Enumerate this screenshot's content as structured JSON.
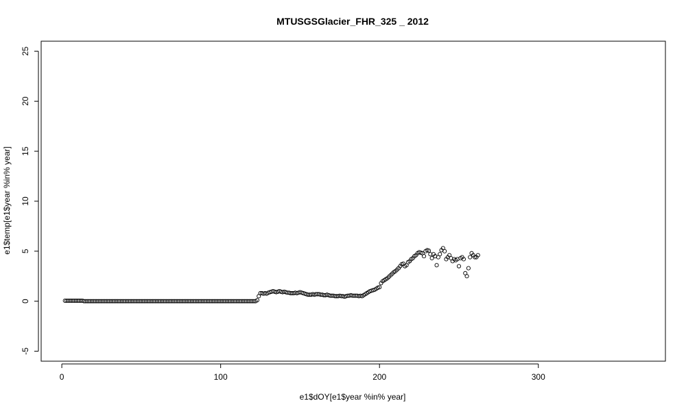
{
  "chart_data": {
    "type": "scatter",
    "title": "MTUSGSGlacier_FHR_325 _ 2012",
    "xlabel": "e1$dOY[e1$year %in% year]",
    "ylabel": "e1$temp[e1$year %in% year]",
    "xlim": [
      -13,
      380
    ],
    "ylim": [
      -6,
      26
    ],
    "xticks": [
      0,
      100,
      200,
      300
    ],
    "yticks": [
      -5,
      0,
      5,
      10,
      15,
      20,
      25
    ],
    "grid": false,
    "legend": "none",
    "marker": "open-circle",
    "series": [
      {
        "points": [
          [
            2,
            0.05
          ],
          [
            3,
            0.05
          ],
          [
            4,
            0.05
          ],
          [
            5,
            0.05
          ],
          [
            6,
            0.05
          ],
          [
            7,
            0.05
          ],
          [
            8,
            0.05
          ],
          [
            9,
            0.05
          ],
          [
            10,
            0.05
          ],
          [
            11,
            0.05
          ],
          [
            12,
            0.05
          ],
          [
            13,
            0.05
          ],
          [
            14,
            0.0
          ],
          [
            15,
            0.0
          ],
          [
            16,
            0.0
          ],
          [
            17,
            0.0
          ],
          [
            18,
            0.0
          ],
          [
            19,
            0.0
          ],
          [
            20,
            0.0
          ],
          [
            21,
            0.0
          ],
          [
            22,
            0.0
          ],
          [
            23,
            0.0
          ],
          [
            24,
            0.0
          ],
          [
            25,
            0.0
          ],
          [
            26,
            0.0
          ],
          [
            27,
            0.0
          ],
          [
            28,
            0.0
          ],
          [
            29,
            0.0
          ],
          [
            30,
            0.0
          ],
          [
            31,
            0.0
          ],
          [
            32,
            0.0
          ],
          [
            33,
            0.0
          ],
          [
            34,
            0.0
          ],
          [
            35,
            0.0
          ],
          [
            36,
            0.0
          ],
          [
            37,
            0.0
          ],
          [
            38,
            0.0
          ],
          [
            39,
            0.0
          ],
          [
            40,
            0.0
          ],
          [
            41,
            0.0
          ],
          [
            42,
            0.0
          ],
          [
            43,
            0.0
          ],
          [
            44,
            0.0
          ],
          [
            45,
            0.0
          ],
          [
            46,
            0.0
          ],
          [
            47,
            0.0
          ],
          [
            48,
            0.0
          ],
          [
            49,
            0.0
          ],
          [
            50,
            0.0
          ],
          [
            51,
            0.0
          ],
          [
            52,
            0.0
          ],
          [
            53,
            0.0
          ],
          [
            54,
            0.0
          ],
          [
            55,
            0.0
          ],
          [
            56,
            0.0
          ],
          [
            57,
            0.0
          ],
          [
            58,
            0.0
          ],
          [
            59,
            0.0
          ],
          [
            60,
            0.0
          ],
          [
            61,
            0.0
          ],
          [
            62,
            0.0
          ],
          [
            63,
            0.0
          ],
          [
            64,
            0.0
          ],
          [
            65,
            0.0
          ],
          [
            66,
            0.0
          ],
          [
            67,
            0.0
          ],
          [
            68,
            0.0
          ],
          [
            69,
            0.0
          ],
          [
            70,
            0.0
          ],
          [
            71,
            0.0
          ],
          [
            72,
            0.0
          ],
          [
            73,
            0.0
          ],
          [
            74,
            0.0
          ],
          [
            75,
            0.0
          ],
          [
            76,
            0.0
          ],
          [
            77,
            0.0
          ],
          [
            78,
            0.0
          ],
          [
            79,
            0.0
          ],
          [
            80,
            0.0
          ],
          [
            81,
            0.0
          ],
          [
            82,
            0.0
          ],
          [
            83,
            0.0
          ],
          [
            84,
            0.0
          ],
          [
            85,
            0.0
          ],
          [
            86,
            0.0
          ],
          [
            87,
            0.0
          ],
          [
            88,
            0.0
          ],
          [
            89,
            0.0
          ],
          [
            90,
            0.0
          ],
          [
            91,
            0.0
          ],
          [
            92,
            0.0
          ],
          [
            93,
            0.0
          ],
          [
            94,
            0.0
          ],
          [
            95,
            0.0
          ],
          [
            96,
            0.0
          ],
          [
            97,
            0.0
          ],
          [
            98,
            0.0
          ],
          [
            99,
            0.0
          ],
          [
            100,
            0.0
          ],
          [
            101,
            0.0
          ],
          [
            102,
            0.0
          ],
          [
            103,
            0.0
          ],
          [
            104,
            0.0
          ],
          [
            105,
            0.0
          ],
          [
            106,
            0.0
          ],
          [
            107,
            0.0
          ],
          [
            108,
            0.0
          ],
          [
            109,
            0.0
          ],
          [
            110,
            0.0
          ],
          [
            111,
            0.0
          ],
          [
            112,
            0.0
          ],
          [
            113,
            0.0
          ],
          [
            114,
            0.0
          ],
          [
            115,
            0.0
          ],
          [
            116,
            0.0
          ],
          [
            117,
            0.0
          ],
          [
            118,
            0.0
          ],
          [
            119,
            0.0
          ],
          [
            120,
            0.0
          ],
          [
            121,
            0.0
          ],
          [
            122,
            0.0
          ],
          [
            123,
            0.1
          ],
          [
            124,
            0.5
          ],
          [
            125,
            0.8
          ],
          [
            126,
            0.8
          ],
          [
            127,
            0.75
          ],
          [
            128,
            0.8
          ],
          [
            129,
            0.75
          ],
          [
            130,
            0.85
          ],
          [
            131,
            0.9
          ],
          [
            132,
            0.95
          ],
          [
            133,
            1.0
          ],
          [
            134,
            0.95
          ],
          [
            135,
            0.9
          ],
          [
            136,
            0.95
          ],
          [
            137,
            1.0
          ],
          [
            138,
            0.95
          ],
          [
            139,
            0.9
          ],
          [
            140,
            0.95
          ],
          [
            141,
            0.9
          ],
          [
            142,
            0.85
          ],
          [
            143,
            0.85
          ],
          [
            144,
            0.8
          ],
          [
            145,
            0.8
          ],
          [
            146,
            0.8
          ],
          [
            147,
            0.85
          ],
          [
            148,
            0.8
          ],
          [
            149,
            0.85
          ],
          [
            150,
            0.9
          ],
          [
            151,
            0.85
          ],
          [
            152,
            0.8
          ],
          [
            153,
            0.75
          ],
          [
            154,
            0.7
          ],
          [
            155,
            0.65
          ],
          [
            156,
            0.65
          ],
          [
            157,
            0.65
          ],
          [
            158,
            0.7
          ],
          [
            159,
            0.65
          ],
          [
            160,
            0.7
          ],
          [
            161,
            0.7
          ],
          [
            162,
            0.7
          ],
          [
            163,
            0.65
          ],
          [
            164,
            0.65
          ],
          [
            165,
            0.6
          ],
          [
            166,
            0.6
          ],
          [
            167,
            0.65
          ],
          [
            168,
            0.6
          ],
          [
            169,
            0.55
          ],
          [
            170,
            0.55
          ],
          [
            171,
            0.55
          ],
          [
            172,
            0.5
          ],
          [
            173,
            0.5
          ],
          [
            174,
            0.5
          ],
          [
            175,
            0.55
          ],
          [
            176,
            0.5
          ],
          [
            177,
            0.5
          ],
          [
            178,
            0.45
          ],
          [
            179,
            0.5
          ],
          [
            180,
            0.55
          ],
          [
            181,
            0.55
          ],
          [
            182,
            0.6
          ],
          [
            183,
            0.55
          ],
          [
            184,
            0.55
          ],
          [
            185,
            0.55
          ],
          [
            186,
            0.55
          ],
          [
            187,
            0.5
          ],
          [
            188,
            0.55
          ],
          [
            189,
            0.5
          ],
          [
            190,
            0.6
          ],
          [
            191,
            0.7
          ],
          [
            192,
            0.8
          ],
          [
            193,
            0.9
          ],
          [
            194,
            1.0
          ],
          [
            195,
            1.05
          ],
          [
            196,
            1.1
          ],
          [
            197,
            1.15
          ],
          [
            198,
            1.25
          ],
          [
            199,
            1.35
          ],
          [
            200,
            1.4
          ],
          [
            201,
            1.8
          ],
          [
            202,
            2.0
          ],
          [
            203,
            2.1
          ],
          [
            204,
            2.2
          ],
          [
            205,
            2.3
          ],
          [
            206,
            2.45
          ],
          [
            207,
            2.6
          ],
          [
            208,
            2.75
          ],
          [
            209,
            2.9
          ],
          [
            210,
            3.0
          ],
          [
            211,
            3.15
          ],
          [
            212,
            3.3
          ],
          [
            213,
            3.5
          ],
          [
            214,
            3.7
          ],
          [
            215,
            3.75
          ],
          [
            216,
            3.5
          ],
          [
            217,
            3.6
          ],
          [
            218,
            3.9
          ],
          [
            219,
            4.0
          ],
          [
            220,
            4.2
          ],
          [
            221,
            4.3
          ],
          [
            222,
            4.5
          ],
          [
            223,
            4.6
          ],
          [
            224,
            4.8
          ],
          [
            225,
            4.9
          ],
          [
            226,
            4.85
          ],
          [
            227,
            4.8
          ],
          [
            228,
            4.5
          ],
          [
            229,
            5.0
          ],
          [
            230,
            5.1
          ],
          [
            231,
            5.05
          ],
          [
            232,
            4.7
          ],
          [
            233,
            4.3
          ],
          [
            234,
            4.7
          ],
          [
            235,
            4.5
          ],
          [
            236,
            3.6
          ],
          [
            237,
            4.4
          ],
          [
            238,
            4.7
          ],
          [
            239,
            5.1
          ],
          [
            240,
            5.3
          ],
          [
            241,
            5.0
          ],
          [
            242,
            4.2
          ],
          [
            243,
            4.4
          ],
          [
            244,
            4.6
          ],
          [
            245,
            4.3
          ],
          [
            246,
            4.0
          ],
          [
            247,
            4.2
          ],
          [
            248,
            4.1
          ],
          [
            249,
            4.2
          ],
          [
            250,
            3.5
          ],
          [
            251,
            4.3
          ],
          [
            252,
            4.4
          ],
          [
            253,
            4.2
          ],
          [
            254,
            2.8
          ],
          [
            255,
            2.5
          ],
          [
            256,
            3.3
          ],
          [
            257,
            4.4
          ],
          [
            258,
            4.8
          ],
          [
            259,
            4.6
          ],
          [
            260,
            4.4
          ],
          [
            261,
            4.4
          ],
          [
            262,
            4.6
          ]
        ]
      }
    ]
  }
}
